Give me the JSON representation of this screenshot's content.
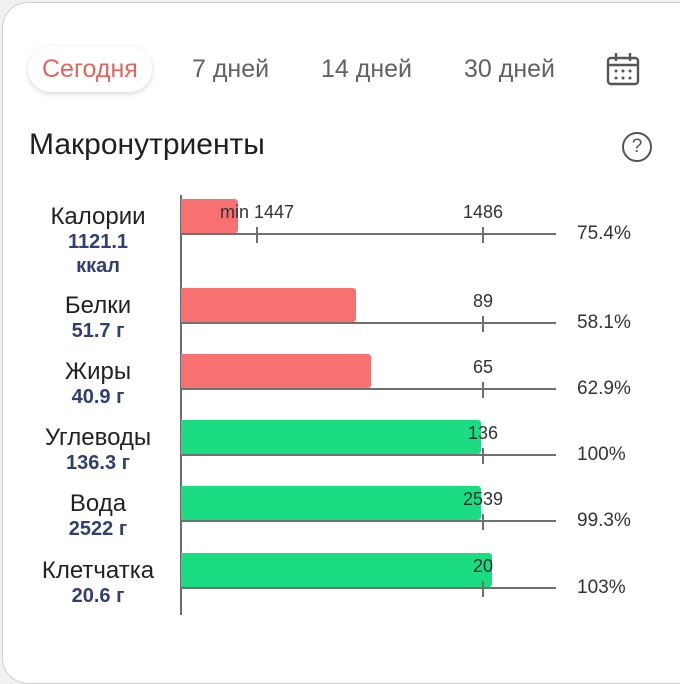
{
  "tabs": [
    {
      "label": "Сегодня",
      "active": true
    },
    {
      "label": "7 дней"
    },
    {
      "label": "14 дней"
    },
    {
      "label": "30 дней"
    }
  ],
  "calendar_icon": "calendar-icon",
  "title": "Макронутриенты",
  "help_icon": "?",
  "colors": {
    "under": "#f87171",
    "ok": "#1bdc80",
    "value": "#2f3f73",
    "active_tab": "#e0665f"
  },
  "rows": [
    {
      "name": "Калории",
      "value": "1121.1",
      "unit": "ккал",
      "bar_fill": 0.19,
      "status": "under",
      "tick_labels": [
        "min 1447",
        "1486"
      ],
      "percent": "75.4%"
    },
    {
      "name": "Белки",
      "value": "51.7 г",
      "bar_fill": 0.581,
      "status": "under",
      "tick_labels": [
        "89"
      ],
      "percent": "58.1%"
    },
    {
      "name": "Жиры",
      "value": "40.9 г",
      "bar_fill": 0.629,
      "status": "under",
      "tick_labels": [
        "65"
      ],
      "percent": "62.9%"
    },
    {
      "name": "Углеводы",
      "value": "136.3 г",
      "bar_fill": 0.995,
      "status": "ok",
      "tick_labels": [
        "136"
      ],
      "percent": "100%"
    },
    {
      "name": "Вода",
      "value": "2522 г",
      "bar_fill": 0.993,
      "status": "ok",
      "tick_labels": [
        "2539"
      ],
      "percent": "99.3%"
    },
    {
      "name": "Клетчатка",
      "value": "20.6 г",
      "bar_fill": 1.03,
      "status": "ok",
      "tick_labels": [
        "20"
      ],
      "percent": "103%"
    }
  ]
}
